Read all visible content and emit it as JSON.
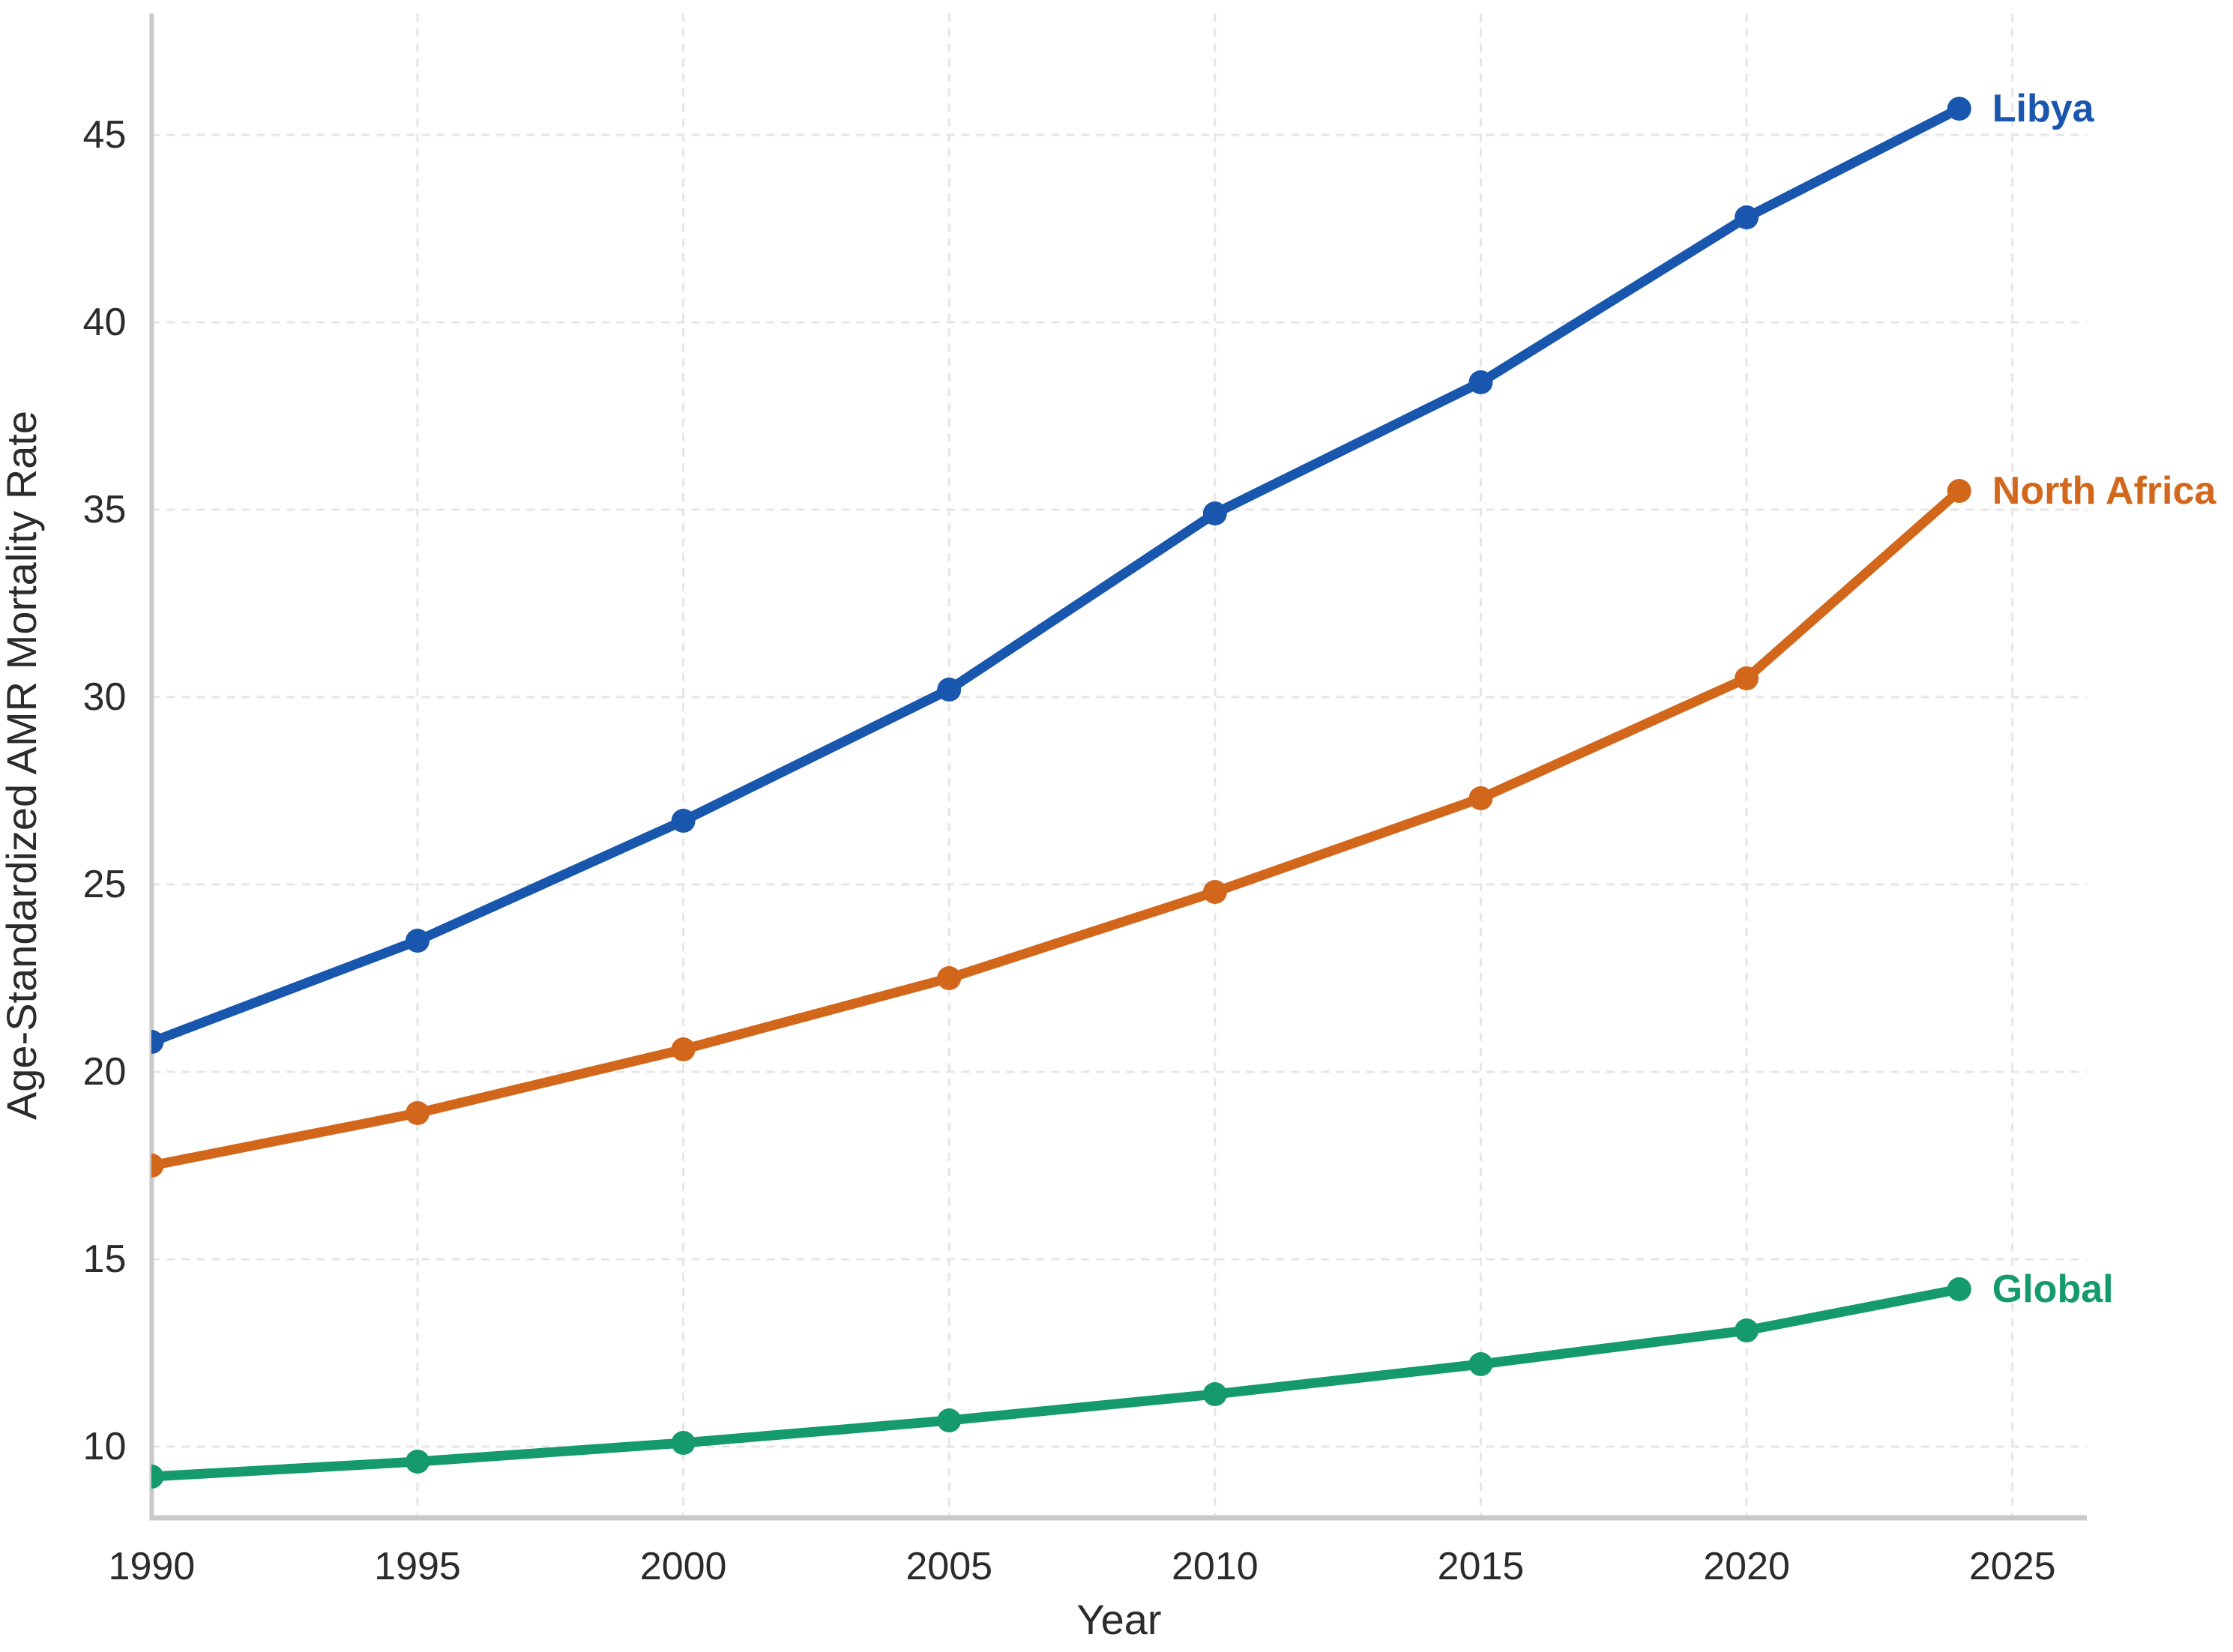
{
  "chart_data": {
    "type": "line",
    "title": "",
    "xlabel": "Year",
    "ylabel": "Age-Standardized AMR Mortality Rate",
    "x": [
      1990,
      1995,
      2000,
      2005,
      2010,
      2015,
      2020,
      2024
    ],
    "series": [
      {
        "name": "Libya",
        "color": "#1857ad",
        "values": [
          20.8,
          23.5,
          26.7,
          30.2,
          34.9,
          38.4,
          42.8,
          45.7
        ]
      },
      {
        "name": "North Africa",
        "color": "#d2671c",
        "values": [
          17.5,
          18.9,
          20.6,
          22.5,
          24.8,
          27.3,
          30.5,
          35.5
        ]
      },
      {
        "name": "Global",
        "color": "#159a6c",
        "values": [
          9.2,
          9.6,
          10.1,
          10.7,
          11.4,
          12.2,
          13.1,
          14.2
        ]
      }
    ],
    "x_ticks": [
      1990,
      1995,
      2000,
      2005,
      2010,
      2015,
      2020,
      2025
    ],
    "y_ticks": [
      10,
      15,
      20,
      25,
      30,
      35,
      40,
      45
    ],
    "x_range": [
      1990,
      2026.4
    ],
    "y_range": [
      8.1,
      48.24
    ],
    "grid": true,
    "grid_style": "dashed",
    "legend_position": "end-of-line-labels",
    "marker": "circle",
    "background_color": "#ffffff",
    "axis_color": "#c9c9c9",
    "grid_color": "#e6e6e6",
    "text_color": "#2b2b2b"
  }
}
